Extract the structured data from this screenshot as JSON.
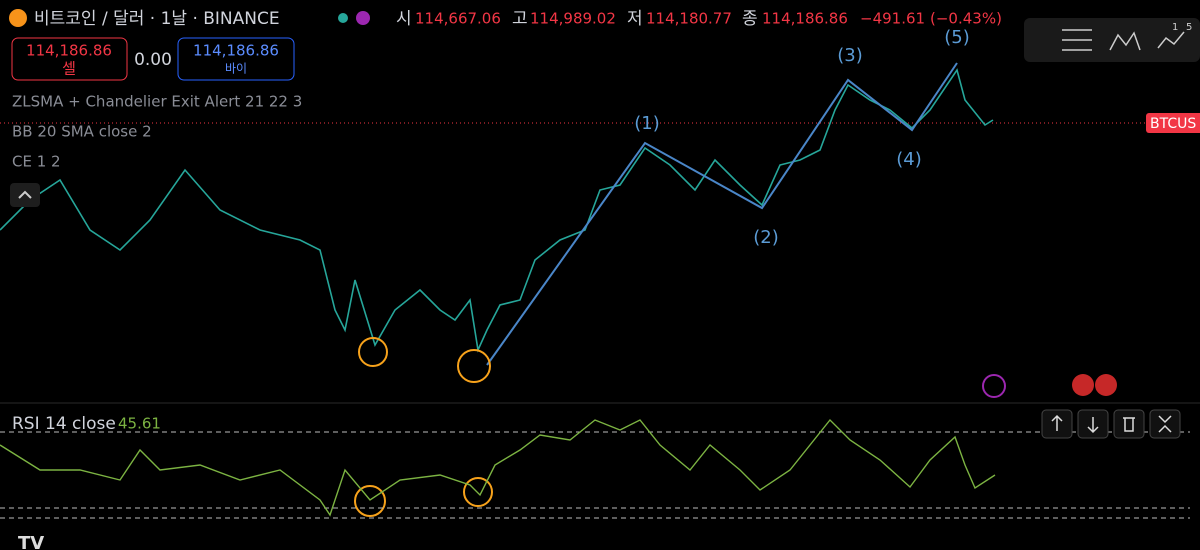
{
  "header": {
    "symbol": "비트코인 / 달러 · 1날 · BINANCE",
    "open_label": "시",
    "open": "114,667.06",
    "high_label": "고",
    "high": "114,989.02",
    "low_label": "저",
    "low": "114,180.77",
    "close_label": "종",
    "close": "114,186.86",
    "change": "−491.61",
    "change_pct": "(−0.43%)"
  },
  "trade": {
    "sell_price": "114,186.86",
    "sell_label": "셀",
    "spread": "0.00",
    "buy_price": "114,186.86",
    "buy_label": "바이"
  },
  "indicators": [
    "ZLSMA + Chandelier Exit Alert 21 22 3",
    "BB 20 SMA close 2",
    "CE 1 2"
  ],
  "waves": [
    "(1)",
    "(2)",
    "(3)",
    "(4)",
    "(5)"
  ],
  "price_tag": "BTCUS",
  "rsi": {
    "label": "RSI 14 close",
    "value": "45.61"
  },
  "toolbar": {
    "digit_a": "1",
    "digit_b": "5"
  },
  "logo": "TV"
}
